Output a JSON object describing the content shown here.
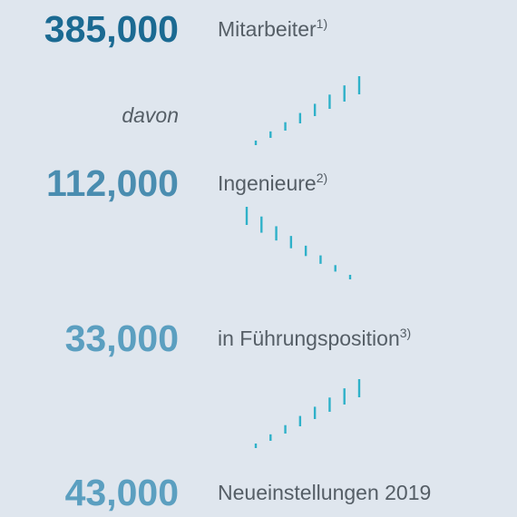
{
  "items": [
    {
      "number": "385,000",
      "label": "Mitarbeiter",
      "note": "1)"
    },
    {
      "number": "112,000",
      "label": "Ingenieure",
      "note": "2)"
    },
    {
      "number": "33,000",
      "label": "in Führungsposition",
      "note": "3)"
    },
    {
      "number": "43,000",
      "label": "Neueinstellungen 2019"
    }
  ],
  "connector": "davon"
}
